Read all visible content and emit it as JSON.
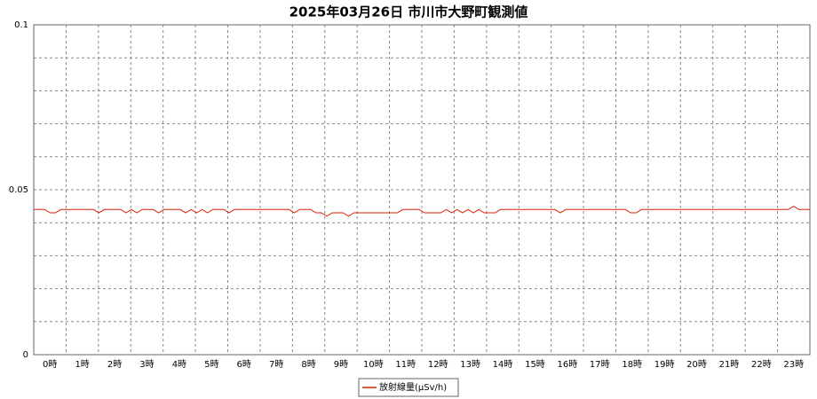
{
  "chart_data": {
    "type": "line",
    "title": "2025年03月26日 市川市大野町観測値",
    "xlim": [
      0,
      24
    ],
    "xticks": [
      {
        "value": 0.5,
        "label": "0時"
      },
      {
        "value": 1.5,
        "label": "1時"
      },
      {
        "value": 2.5,
        "label": "2時"
      },
      {
        "value": 3.5,
        "label": "3時"
      },
      {
        "value": 4.5,
        "label": "4時"
      },
      {
        "value": 5.5,
        "label": "5時"
      },
      {
        "value": 6.5,
        "label": "6時"
      },
      {
        "value": 7.5,
        "label": "7時"
      },
      {
        "value": 8.5,
        "label": "8時"
      },
      {
        "value": 9.5,
        "label": "9時"
      },
      {
        "value": 10.5,
        "label": "10時"
      },
      {
        "value": 11.5,
        "label": "11時"
      },
      {
        "value": 12.5,
        "label": "12時"
      },
      {
        "value": 13.5,
        "label": "13時"
      },
      {
        "value": 14.5,
        "label": "14時"
      },
      {
        "value": 15.5,
        "label": "15時"
      },
      {
        "value": 16.5,
        "label": "16時"
      },
      {
        "value": 17.5,
        "label": "17時"
      },
      {
        "value": 18.5,
        "label": "18時"
      },
      {
        "value": 19.5,
        "label": "19時"
      },
      {
        "value": 20.5,
        "label": "20時"
      },
      {
        "value": 21.5,
        "label": "21時"
      },
      {
        "value": 22.5,
        "label": "22時"
      },
      {
        "value": 23.5,
        "label": "23時"
      }
    ],
    "ylim": [
      0,
      0.1
    ],
    "yticks": [
      0,
      0.05,
      0.1
    ],
    "minor_yticks": [
      0.01,
      0.02,
      0.03,
      0.04,
      0.06,
      0.07,
      0.08,
      0.09
    ],
    "grid": true,
    "legend": "bottom",
    "series": [
      {
        "name": "放射線量(μSv/h)",
        "color": "#dd2200",
        "values": [
          0.044,
          0.044,
          0.044,
          0.043,
          0.043,
          0.044,
          0.044,
          0.044,
          0.044,
          0.044,
          0.044,
          0.044,
          0.043,
          0.044,
          0.044,
          0.044,
          0.044,
          0.043,
          0.044,
          0.043,
          0.044,
          0.044,
          0.044,
          0.043,
          0.044,
          0.044,
          0.044,
          0.044,
          0.043,
          0.044,
          0.043,
          0.044,
          0.043,
          0.044,
          0.044,
          0.044,
          0.043,
          0.044,
          0.044,
          0.044,
          0.044,
          0.044,
          0.044,
          0.044,
          0.044,
          0.044,
          0.044,
          0.044,
          0.043,
          0.044,
          0.044,
          0.044,
          0.043,
          0.043,
          0.042,
          0.043,
          0.043,
          0.043,
          0.042,
          0.043,
          0.043,
          0.043,
          0.043,
          0.043,
          0.043,
          0.043,
          0.043,
          0.043,
          0.044,
          0.044,
          0.044,
          0.044,
          0.043,
          0.043,
          0.043,
          0.043,
          0.044,
          0.043,
          0.044,
          0.043,
          0.044,
          0.043,
          0.044,
          0.043,
          0.043,
          0.043,
          0.044,
          0.044,
          0.044,
          0.044,
          0.044,
          0.044,
          0.044,
          0.044,
          0.044,
          0.044,
          0.044,
          0.043,
          0.044,
          0.044,
          0.044,
          0.044,
          0.044,
          0.044,
          0.044,
          0.044,
          0.044,
          0.044,
          0.044,
          0.044,
          0.043,
          0.043,
          0.044,
          0.044,
          0.044,
          0.044,
          0.044,
          0.044,
          0.044,
          0.044,
          0.044,
          0.044,
          0.044,
          0.044,
          0.044,
          0.044,
          0.044,
          0.044,
          0.044,
          0.044,
          0.044,
          0.044,
          0.044,
          0.044,
          0.044,
          0.044,
          0.044,
          0.044,
          0.044,
          0.044,
          0.045,
          0.044,
          0.044,
          0.044
        ]
      }
    ]
  }
}
